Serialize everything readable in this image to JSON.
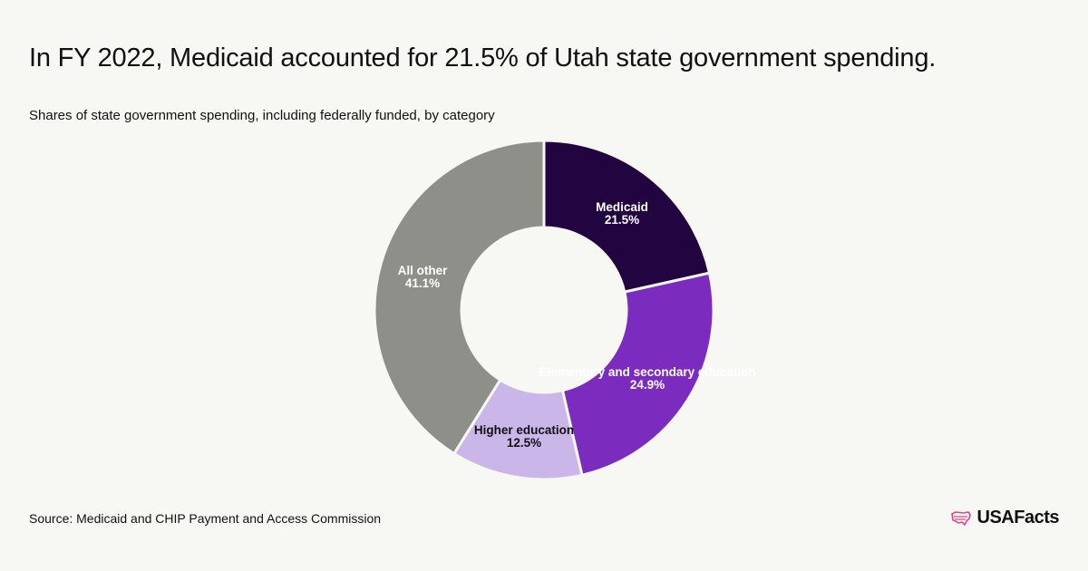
{
  "header": {
    "title": "In FY 2022, Medicaid accounted for 21.5% of Utah state government spending.",
    "subtitle": "Shares of state government spending, including federally funded, by category"
  },
  "footer": {
    "source": "Source: Medicaid and CHIP Payment and Access Commission",
    "brand": "USAFacts"
  },
  "colors": {
    "background": "#f7f7f3",
    "medicaid": "#220540",
    "elementary": "#7b2cbf",
    "higher": "#cbb6ea",
    "other": "#8f8f8a",
    "brand_accent": "#e0458c"
  },
  "icons": {
    "brand": "us-map-icon"
  },
  "chart_data": {
    "type": "pie",
    "style": "donut",
    "title": "",
    "slices": [
      {
        "label": "Medicaid",
        "value": 21.5,
        "display": "21.5%",
        "color": "#220540",
        "text_color": "#ffffff"
      },
      {
        "label": "Elementary and secondary education",
        "value": 24.9,
        "display": "24.9%",
        "color": "#7b2cbf",
        "text_color": "#ffffff"
      },
      {
        "label": "Higher education",
        "value": 12.5,
        "display": "12.5%",
        "color": "#cbb6ea",
        "text_color": "#111111"
      },
      {
        "label": "All other",
        "value": 41.1,
        "display": "41.1%",
        "color": "#8f8f8a",
        "text_color": "#ffffff"
      }
    ]
  }
}
